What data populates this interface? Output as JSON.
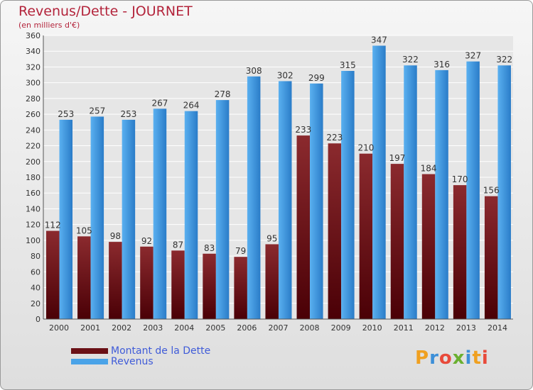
{
  "header": {
    "title": "Revenus/Dette - JOURNET",
    "subtitle": "(en milliers d'€)"
  },
  "legend": {
    "items": [
      {
        "label": "Montant de la Dette",
        "color": "#7a1a1e"
      },
      {
        "label": "Revenus",
        "color": "#4aa3e8"
      }
    ]
  },
  "logo": {
    "text": "Proxiti"
  },
  "colors": {
    "debt_top": "#8b2a2e",
    "debt_bottom": "#4a0006",
    "revenue_top": "#5ab0f0",
    "revenue_bottom": "#2a7cc8",
    "grid": "#ffffff",
    "axis_text": "#333333"
  },
  "chart_data": {
    "type": "bar",
    "categories": [
      "2000",
      "2001",
      "2002",
      "2003",
      "2004",
      "2005",
      "2006",
      "2007",
      "2008",
      "2009",
      "2010",
      "2011",
      "2012",
      "2013",
      "2014"
    ],
    "series": [
      {
        "name": "Montant de la Dette",
        "values": [
          112,
          105,
          98,
          92,
          87,
          83,
          79,
          95,
          233,
          223,
          210,
          197,
          184,
          170,
          156
        ]
      },
      {
        "name": "Revenus",
        "values": [
          253,
          257,
          253,
          267,
          264,
          278,
          308,
          302,
          299,
          315,
          347,
          322,
          316,
          327,
          322
        ]
      }
    ],
    "title": "Revenus/Dette - JOURNET",
    "subtitle": "(en milliers d'€)",
    "xlabel": "",
    "ylabel": "",
    "ylim": [
      0,
      360
    ],
    "ytick_step": 20,
    "grid": true,
    "legend_position": "bottom-left"
  }
}
